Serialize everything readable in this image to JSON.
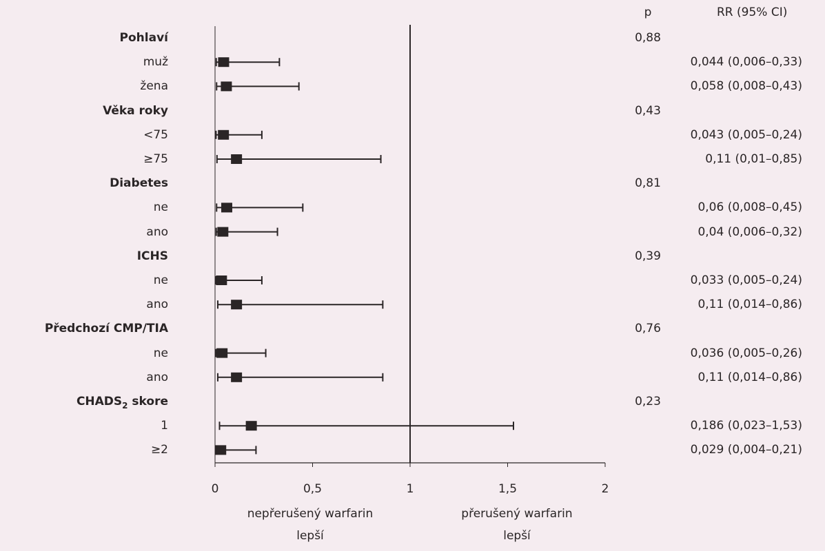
{
  "header": {
    "p_label": "p",
    "rr_label": "RR (95% CI)"
  },
  "chart_data": {
    "type": "forest",
    "xlim": [
      0,
      2
    ],
    "reference_line": 1,
    "x_ticks": [
      "0",
      "0,5",
      "1",
      "1,5",
      "2"
    ],
    "x_tick_values": [
      0,
      0.5,
      1,
      1.5,
      2
    ],
    "x_label_left": [
      "nepřerušený warfarin",
      "lepší"
    ],
    "x_label_right": [
      "přerušený warfarin",
      "lepší"
    ],
    "rows": [
      {
        "label": "Pohlaví",
        "group": true,
        "p": "0,88"
      },
      {
        "label": "muž",
        "rr": 0.044,
        "lo": 0.006,
        "hi": 0.33,
        "rr_text": "0,044 (0,006–0,33)"
      },
      {
        "label": "žena",
        "rr": 0.058,
        "lo": 0.008,
        "hi": 0.43,
        "rr_text": "0,058 (0,008–0,43)"
      },
      {
        "label": "Věka roky",
        "group": true,
        "p": "0,43"
      },
      {
        "label": "<75",
        "rr": 0.043,
        "lo": 0.005,
        "hi": 0.24,
        "rr_text": "0,043 (0,005–0,24)"
      },
      {
        "label": "≥75",
        "rr": 0.11,
        "lo": 0.01,
        "hi": 0.85,
        "rr_text": "0,11 (0,01–0,85)"
      },
      {
        "label": "Diabetes",
        "group": true,
        "p": "0,81"
      },
      {
        "label": "ne",
        "rr": 0.06,
        "lo": 0.008,
        "hi": 0.45,
        "rr_text": "0,06 (0,008–0,45)"
      },
      {
        "label": "ano",
        "rr": 0.04,
        "lo": 0.006,
        "hi": 0.32,
        "rr_text": "0,04 (0,006–0,32)"
      },
      {
        "label": "ICHS",
        "group": true,
        "p": "0,39"
      },
      {
        "label": "ne",
        "rr": 0.033,
        "lo": 0.005,
        "hi": 0.24,
        "rr_text": "0,033 (0,005–0,24)"
      },
      {
        "label": "ano",
        "rr": 0.11,
        "lo": 0.014,
        "hi": 0.86,
        "rr_text": "0,11 (0,014–0,86)"
      },
      {
        "label": "Předchozí CMP/TIA",
        "group": true,
        "p": "0,76"
      },
      {
        "label": "ne",
        "rr": 0.036,
        "lo": 0.005,
        "hi": 0.26,
        "rr_text": "0,036 (0,005–0,26)"
      },
      {
        "label": "ano",
        "rr": 0.11,
        "lo": 0.014,
        "hi": 0.86,
        "rr_text": "0,11 (0,014–0,86)"
      },
      {
        "label": "CHADS",
        "label_sub": "2",
        "label_after": " skore",
        "group": true,
        "p": "0,23"
      },
      {
        "label": "1",
        "rr": 0.186,
        "lo": 0.023,
        "hi": 1.53,
        "rr_text": "0,186 (0,023–1,53)"
      },
      {
        "label": "≥2",
        "rr": 0.029,
        "lo": 0.004,
        "hi": 0.21,
        "rr_text": "0,029 (0,004–0,21)"
      }
    ]
  }
}
